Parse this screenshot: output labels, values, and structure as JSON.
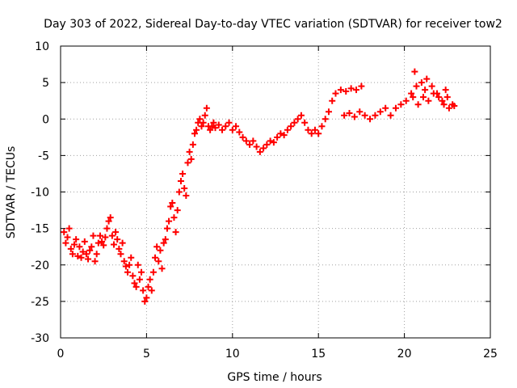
{
  "chart_data": {
    "type": "scatter",
    "title": "Day 303 of 2022, Sidereal Day-to-day VTEC variation (SDTVAR) for receiver tow2",
    "xlabel": "GPS time / hours",
    "ylabel": "SDTVAR / TECUs",
    "xlim": [
      0,
      25
    ],
    "ylim": [
      -30,
      10
    ],
    "xticks": [
      "0",
      "5",
      "10",
      "15",
      "20",
      "25"
    ],
    "yticks": [
      "10",
      "5",
      "0",
      "-5",
      "-10",
      "-15",
      "-20",
      "-25",
      "-30"
    ],
    "grid": true,
    "marker": "plus",
    "color": "#ff0000",
    "series": [
      {
        "name": "SDTVAR",
        "points": [
          [
            0.2,
            -15.5
          ],
          [
            0.3,
            -17.0
          ],
          [
            0.4,
            -16.2
          ],
          [
            0.5,
            -15.0
          ],
          [
            0.6,
            -17.8
          ],
          [
            0.7,
            -18.5
          ],
          [
            0.8,
            -17.2
          ],
          [
            0.9,
            -16.5
          ],
          [
            1.0,
            -18.8
          ],
          [
            1.1,
            -17.5
          ],
          [
            1.2,
            -19.0
          ],
          [
            1.3,
            -18.2
          ],
          [
            1.4,
            -16.8
          ],
          [
            1.5,
            -18.5
          ],
          [
            1.6,
            -19.2
          ],
          [
            1.7,
            -18.0
          ],
          [
            1.8,
            -17.5
          ],
          [
            1.9,
            -16.0
          ],
          [
            2.0,
            -19.5
          ],
          [
            2.1,
            -18.5
          ],
          [
            2.2,
            -17.0
          ],
          [
            2.3,
            -16.0
          ],
          [
            2.4,
            -16.8
          ],
          [
            2.5,
            -17.3
          ],
          [
            2.6,
            -16.2
          ],
          [
            2.7,
            -15.0
          ],
          [
            2.8,
            -14.0
          ],
          [
            2.9,
            -13.5
          ],
          [
            3.0,
            -16.0
          ],
          [
            3.1,
            -17.2
          ],
          [
            3.2,
            -15.5
          ],
          [
            3.3,
            -16.5
          ],
          [
            3.4,
            -17.8
          ],
          [
            3.5,
            -18.5
          ],
          [
            3.6,
            -17.0
          ],
          [
            3.7,
            -19.5
          ],
          [
            3.8,
            -20.2
          ],
          [
            3.9,
            -21.0
          ],
          [
            4.0,
            -20.0
          ],
          [
            4.1,
            -19.0
          ],
          [
            4.2,
            -21.5
          ],
          [
            4.3,
            -22.5
          ],
          [
            4.4,
            -23.0
          ],
          [
            4.5,
            -20.0
          ],
          [
            4.6,
            -22.0
          ],
          [
            4.7,
            -21.0
          ],
          [
            4.8,
            -23.5
          ],
          [
            4.9,
            -25.0
          ],
          [
            5.0,
            -24.5
          ],
          [
            5.1,
            -23.0
          ],
          [
            5.2,
            -22.0
          ],
          [
            5.3,
            -23.5
          ],
          [
            5.4,
            -21.0
          ],
          [
            5.5,
            -19.0
          ],
          [
            5.6,
            -17.5
          ],
          [
            5.7,
            -19.5
          ],
          [
            5.8,
            -18.0
          ],
          [
            5.9,
            -20.5
          ],
          [
            6.0,
            -17.0
          ],
          [
            6.1,
            -16.5
          ],
          [
            6.2,
            -15.0
          ],
          [
            6.3,
            -14.0
          ],
          [
            6.4,
            -12.0
          ],
          [
            6.5,
            -11.5
          ],
          [
            6.6,
            -13.5
          ],
          [
            6.7,
            -15.5
          ],
          [
            6.8,
            -12.5
          ],
          [
            6.9,
            -10.0
          ],
          [
            7.0,
            -8.5
          ],
          [
            7.1,
            -7.5
          ],
          [
            7.2,
            -9.5
          ],
          [
            7.3,
            -10.5
          ],
          [
            7.4,
            -6.0
          ],
          [
            7.5,
            -4.5
          ],
          [
            7.6,
            -5.5
          ],
          [
            7.7,
            -3.5
          ],
          [
            7.8,
            -2.0
          ],
          [
            7.9,
            -1.5
          ],
          [
            8.0,
            -0.5
          ],
          [
            8.1,
            0.0
          ],
          [
            8.2,
            -1.0
          ],
          [
            8.3,
            -0.5
          ],
          [
            8.4,
            0.5
          ],
          [
            8.5,
            1.5
          ],
          [
            8.6,
            -1.0
          ],
          [
            8.7,
            -1.5
          ],
          [
            8.8,
            -1.0
          ],
          [
            8.9,
            -0.5
          ],
          [
            9.0,
            -1.2
          ],
          [
            9.2,
            -0.8
          ],
          [
            9.4,
            -1.5
          ],
          [
            9.6,
            -1.0
          ],
          [
            9.8,
            -0.5
          ],
          [
            10.0,
            -1.5
          ],
          [
            10.2,
            -1.0
          ],
          [
            10.4,
            -1.8
          ],
          [
            10.6,
            -2.5
          ],
          [
            10.8,
            -3.0
          ],
          [
            11.0,
            -3.5
          ],
          [
            11.2,
            -3.0
          ],
          [
            11.4,
            -3.8
          ],
          [
            11.6,
            -4.5
          ],
          [
            11.8,
            -4.0
          ],
          [
            12.0,
            -3.5
          ],
          [
            12.2,
            -3.0
          ],
          [
            12.4,
            -3.2
          ],
          [
            12.6,
            -2.5
          ],
          [
            12.8,
            -2.0
          ],
          [
            13.0,
            -2.2
          ],
          [
            13.2,
            -1.5
          ],
          [
            13.4,
            -1.0
          ],
          [
            13.6,
            -0.5
          ],
          [
            13.8,
            0.0
          ],
          [
            14.0,
            0.5
          ],
          [
            14.2,
            -0.5
          ],
          [
            14.4,
            -1.5
          ],
          [
            14.6,
            -2.0
          ],
          [
            14.8,
            -1.5
          ],
          [
            15.0,
            -2.0
          ],
          [
            15.2,
            -1.0
          ],
          [
            15.4,
            0.0
          ],
          [
            15.6,
            1.0
          ],
          [
            15.8,
            2.5
          ],
          [
            16.0,
            3.5
          ],
          [
            16.3,
            4.0
          ],
          [
            16.6,
            3.8
          ],
          [
            16.9,
            4.2
          ],
          [
            17.2,
            4.0
          ],
          [
            17.5,
            4.5
          ],
          [
            16.5,
            0.5
          ],
          [
            16.8,
            0.8
          ],
          [
            17.1,
            0.3
          ],
          [
            17.4,
            1.0
          ],
          [
            17.7,
            0.5
          ],
          [
            18.0,
            0.0
          ],
          [
            18.3,
            0.5
          ],
          [
            18.6,
            1.0
          ],
          [
            18.9,
            1.5
          ],
          [
            19.2,
            0.5
          ],
          [
            19.5,
            1.5
          ],
          [
            19.8,
            2.0
          ],
          [
            20.1,
            2.5
          ],
          [
            20.4,
            3.5
          ],
          [
            20.7,
            4.5
          ],
          [
            21.0,
            5.0
          ],
          [
            21.3,
            5.5
          ],
          [
            21.6,
            4.5
          ],
          [
            21.9,
            3.5
          ],
          [
            22.2,
            2.5
          ],
          [
            22.5,
            3.0
          ],
          [
            22.8,
            2.0
          ],
          [
            20.5,
            3.0
          ],
          [
            20.8,
            2.0
          ],
          [
            21.1,
            3.0
          ],
          [
            21.4,
            2.5
          ],
          [
            21.7,
            3.5
          ],
          [
            22.0,
            3.0
          ],
          [
            22.3,
            2.0
          ],
          [
            22.6,
            1.5
          ],
          [
            22.9,
            1.8
          ],
          [
            20.6,
            6.5
          ],
          [
            21.2,
            4.0
          ],
          [
            22.4,
            4.0
          ]
        ]
      }
    ]
  }
}
